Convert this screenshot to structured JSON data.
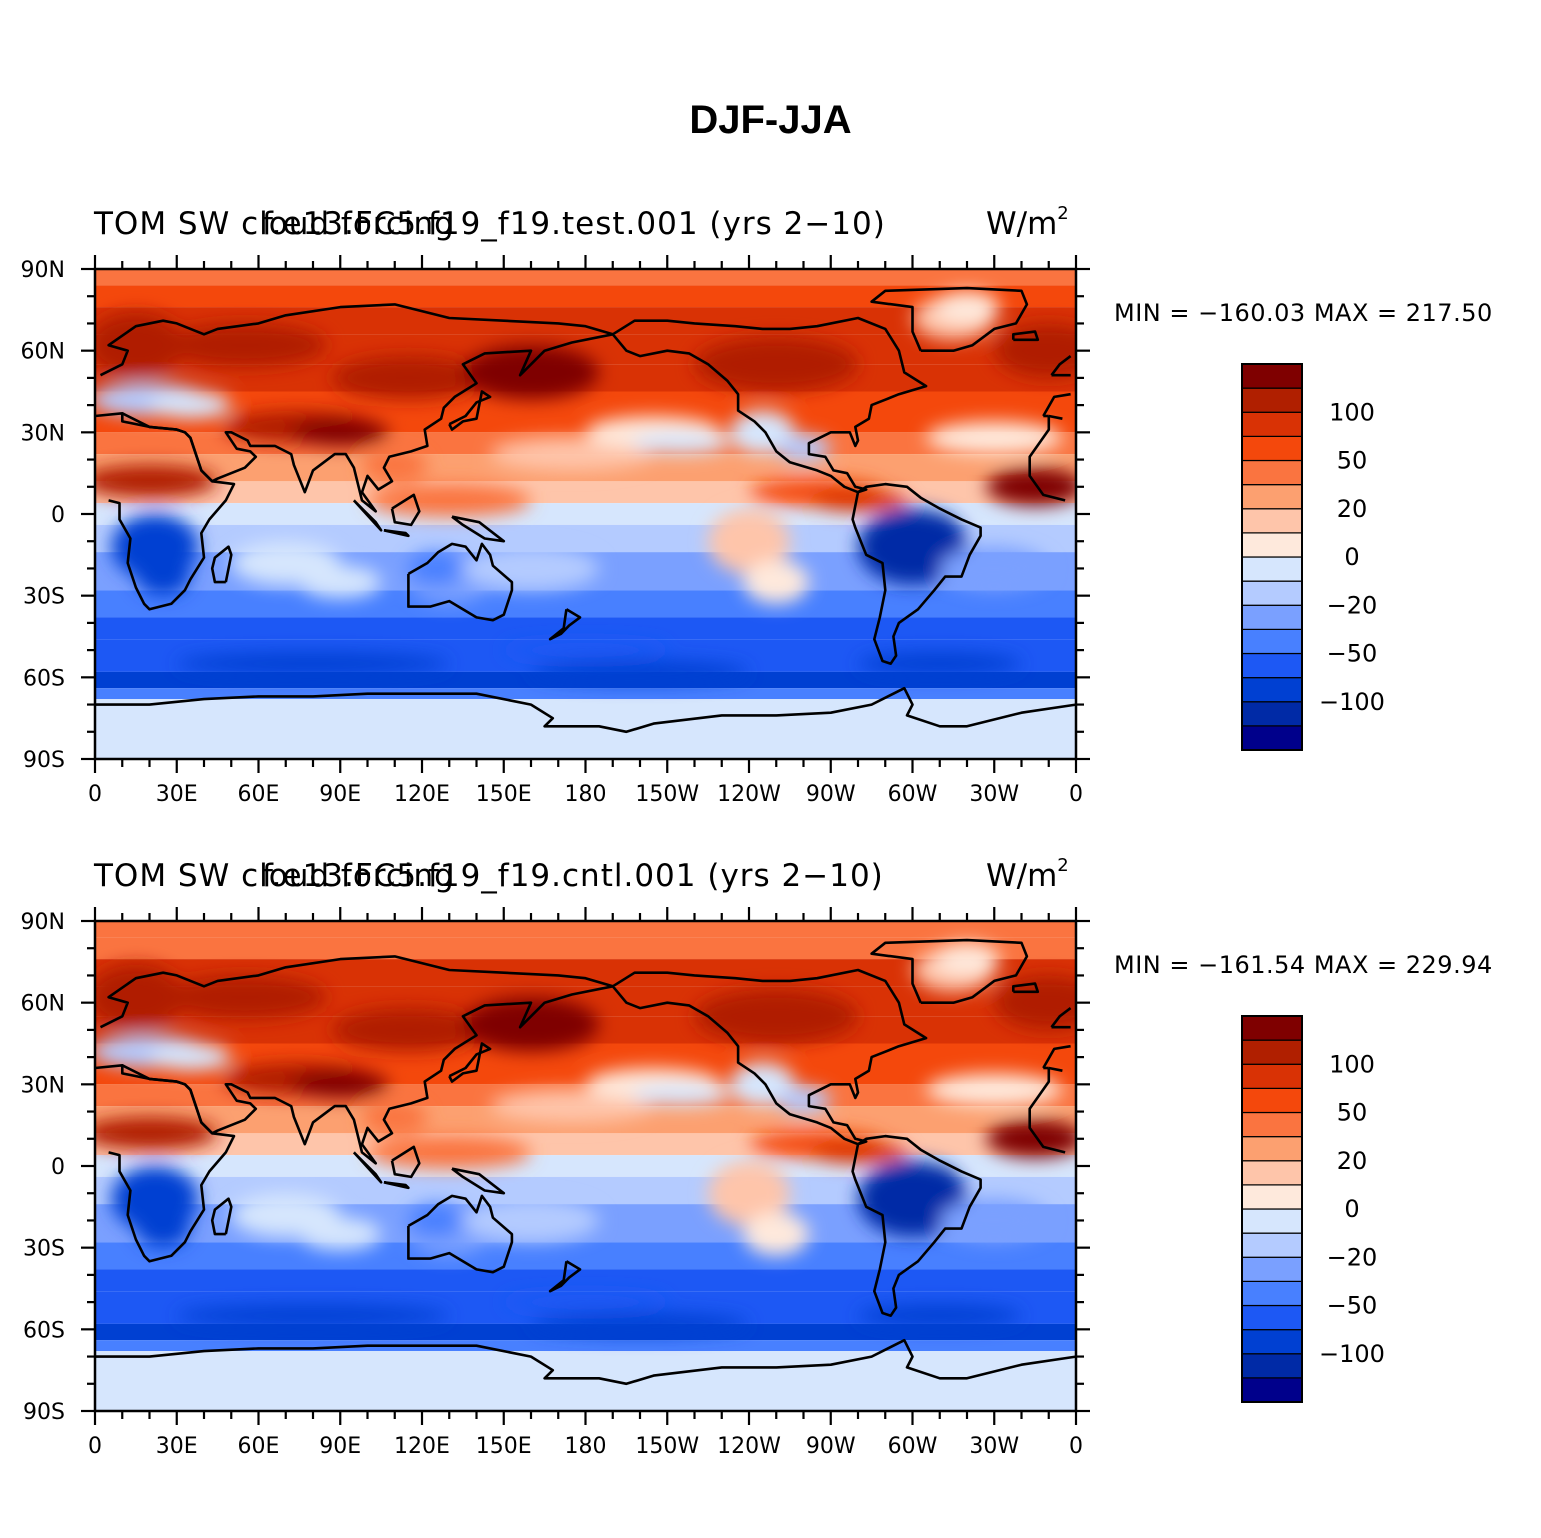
{
  "figure": {
    "title": "DJF-JJA"
  },
  "colorbar": {
    "colors": [
      "#00008b",
      "#002aa6",
      "#0040d2",
      "#1d58f4",
      "#4880ff",
      "#7aa0ff",
      "#b4cbff",
      "#d6e6fd",
      "#fee9dc",
      "#fec5aa",
      "#fca070",
      "#fa7440",
      "#f4480c",
      "#d93205",
      "#b01f00",
      "#7f0000"
    ],
    "labels": [
      "100",
      "50",
      "20",
      "0",
      "−20",
      "−50",
      "−100"
    ]
  },
  "chart_data": [
    {
      "type": "heatmap",
      "left_title": "TOM SW cloud forcing",
      "center_title": "f.e13.FC5.f19_f19.test.001 (yrs 2−10)",
      "units": "W/m",
      "units_sup": "2",
      "minmax": "MIN = −160.03 MAX = 217.50",
      "lon_range": [
        0,
        360
      ],
      "lat_range": [
        -90,
        90
      ],
      "x_tick_labels": [
        "0",
        "30E",
        "60E",
        "90E",
        "120E",
        "150E",
        "180",
        "150W",
        "120W",
        "90W",
        "60W",
        "30W",
        "0"
      ],
      "y_tick_labels": [
        "90N",
        "60N",
        "30N",
        "0",
        "30S",
        "60S",
        "90S"
      ],
      "contour_levels": [
        -150,
        -120,
        -100,
        -80,
        -50,
        -40,
        -20,
        -10,
        0,
        10,
        20,
        40,
        50,
        80,
        100,
        120,
        150
      ],
      "variant": 0
    },
    {
      "type": "heatmap",
      "left_title": "TOM SW cloud forcing",
      "center_title": "f.e13.FC5.f19_f19.cntl.001 (yrs 2−10)",
      "units": "W/m",
      "units_sup": "2",
      "minmax": "MIN = −161.54 MAX = 229.94",
      "lon_range": [
        0,
        360
      ],
      "lat_range": [
        -90,
        90
      ],
      "x_tick_labels": [
        "0",
        "30E",
        "60E",
        "90E",
        "120E",
        "150E",
        "180",
        "150W",
        "120W",
        "90W",
        "60W",
        "30W",
        "0"
      ],
      "y_tick_labels": [
        "90N",
        "60N",
        "30N",
        "0",
        "30S",
        "60S",
        "90S"
      ],
      "contour_levels": [
        -150,
        -120,
        -100,
        -80,
        -50,
        -40,
        -20,
        -10,
        0,
        10,
        20,
        40,
        50,
        80,
        100,
        120,
        150
      ],
      "variant": 1
    }
  ]
}
